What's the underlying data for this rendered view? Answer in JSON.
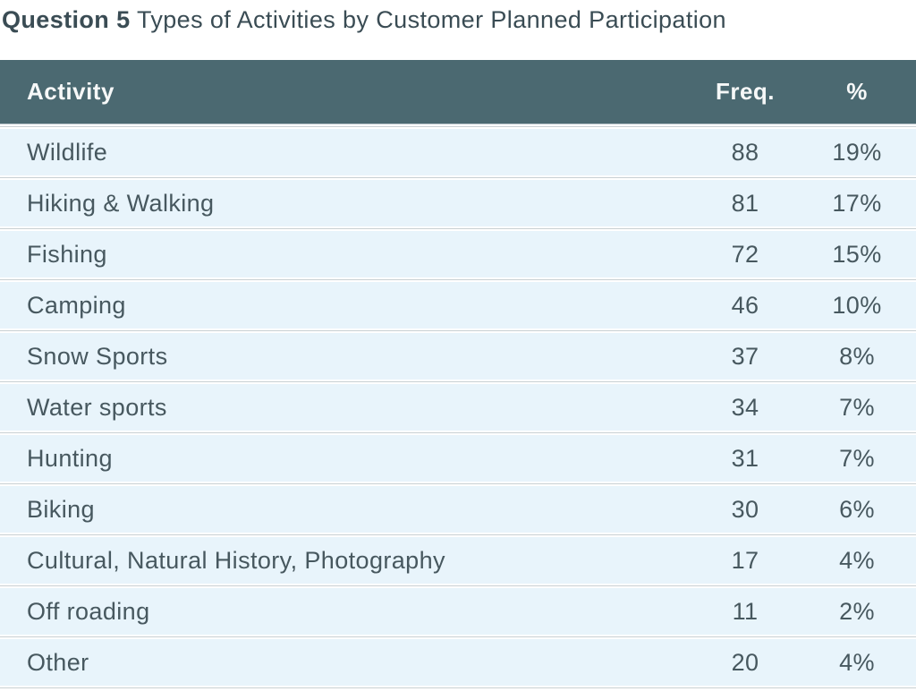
{
  "title": {
    "prefix": "Question 5",
    "rest": "Types of Activities by Customer Planned Participation"
  },
  "table": {
    "columns": {
      "activity": "Activity",
      "freq": "Freq.",
      "pct": "%"
    },
    "rows": [
      {
        "activity": "Wildlife",
        "freq": "88",
        "pct": "19%"
      },
      {
        "activity": "Hiking & Walking",
        "freq": "81",
        "pct": "17%"
      },
      {
        "activity": "Fishing",
        "freq": "72",
        "pct": "15%"
      },
      {
        "activity": "Camping",
        "freq": "46",
        "pct": "10%"
      },
      {
        "activity": "Snow Sports",
        "freq": "37",
        "pct": "8%"
      },
      {
        "activity": "Water sports",
        "freq": "34",
        "pct": "7%"
      },
      {
        "activity": "Hunting",
        "freq": "31",
        "pct": "7%"
      },
      {
        "activity": "Biking",
        "freq": "30",
        "pct": "6%"
      },
      {
        "activity": "Cultural, Natural History, Photography",
        "freq": "17",
        "pct": "4%"
      },
      {
        "activity": "Off roading",
        "freq": "11",
        "pct": "2%"
      },
      {
        "activity": "Other",
        "freq": "20",
        "pct": "4%"
      }
    ]
  },
  "colors": {
    "header_bg": "#4b6971",
    "header_text": "#f6f8f8",
    "row_bg": "#e8f4fb",
    "row_text": "#47585f",
    "title_text": "#3a4c54",
    "divider": "#c9d0d3"
  },
  "chart_data": {
    "type": "table",
    "title": "Question 5 Types of Activities by Customer Planned Participation",
    "columns": [
      "Activity",
      "Freq.",
      "%"
    ],
    "categories": [
      "Wildlife",
      "Hiking & Walking",
      "Fishing",
      "Camping",
      "Snow Sports",
      "Water sports",
      "Hunting",
      "Biking",
      "Cultural, Natural History, Photography",
      "Off roading",
      "Other"
    ],
    "series": [
      {
        "name": "Freq.",
        "values": [
          88,
          81,
          72,
          46,
          37,
          34,
          31,
          30,
          17,
          11,
          20
        ]
      },
      {
        "name": "%",
        "values": [
          "19%",
          "17%",
          "15%",
          "10%",
          "8%",
          "7%",
          "7%",
          "6%",
          "4%",
          "2%",
          "4%"
        ]
      }
    ],
    "layout": "single styled table, teal header row, light blue zebra-free rows, thin gray separators"
  }
}
